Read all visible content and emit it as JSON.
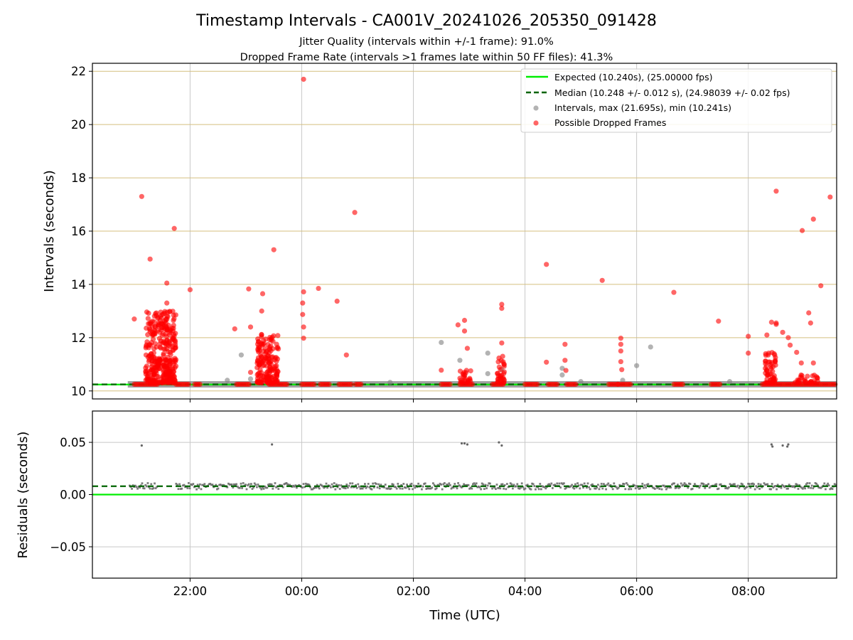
{
  "chart_data": [
    {
      "panel": "intervals",
      "type": "scatter",
      "title": "Timestamp Intervals - CA001V_20241026_205350_091428",
      "subtitle_lines": [
        "Jitter Quality (intervals within +/-1 frame): 91.0%",
        "Dropped Frame Rate (intervals >1 frames late within 50 FF files): 41.3%"
      ],
      "xlabel": "",
      "ylabel": "Intervals (seconds)",
      "x_ticks": [
        "22:00",
        "00:00",
        "02:00",
        "04:00",
        "06:00",
        "08:00"
      ],
      "x_tick_values": [
        "2024-10-26 22:00",
        "2024-10-27 00:00",
        "2024-10-27 02:00",
        "2024-10-27 04:00",
        "2024-10-27 06:00",
        "2024-10-27 08:00"
      ],
      "xlim": [
        "2024-10-26 20:15",
        "2024-10-27 09:35"
      ],
      "y_ticks": [
        "10",
        "12",
        "14",
        "16",
        "18",
        "20",
        "22"
      ],
      "ylim": [
        9.7,
        22.3
      ],
      "grid": true,
      "legend_position": "top-right",
      "series": [
        {
          "name": "Expected (10.240s), (25.00000 fps)",
          "kind": "hline",
          "y": 10.24,
          "color": "#00ee00",
          "style": "solid"
        },
        {
          "name": "Median (10.248 +/- 0.012 s), (24.98039 +/- 0.02 fps)",
          "kind": "hline",
          "y": 10.248,
          "color": "#006400",
          "style": "dashed"
        },
        {
          "name": "Intervals, max (21.695s), min (10.241s)",
          "kind": "scatter",
          "color": "#808080",
          "band": {
            "y": 10.248,
            "segments": [
              [
                "2024-10-26 20:53",
                "2024-10-27 09:35"
              ]
            ]
          },
          "points": [
            [
              "2024-10-26 22:55",
              11.35
            ],
            [
              "2024-10-26 22:40",
              10.4
            ],
            [
              "2024-10-26 23:05",
              10.45
            ],
            [
              "2024-10-27 02:30",
              11.82
            ],
            [
              "2024-10-27 02:50",
              11.15
            ],
            [
              "2024-10-27 02:55",
              10.6
            ],
            [
              "2024-10-27 03:20",
              11.42
            ],
            [
              "2024-10-27 03:20",
              10.65
            ],
            [
              "2024-10-27 03:35",
              10.8
            ],
            [
              "2024-10-27 04:40",
              10.85
            ],
            [
              "2024-10-27 04:40",
              10.6
            ],
            [
              "2024-10-27 05:00",
              10.35
            ],
            [
              "2024-10-27 06:00",
              10.95
            ],
            [
              "2024-10-27 06:15",
              11.65
            ],
            [
              "2024-10-27 07:40",
              10.35
            ],
            [
              "2024-10-27 01:35",
              10.32
            ],
            [
              "2024-10-27 05:45",
              10.4
            ]
          ]
        },
        {
          "name": "Possible Dropped Frames",
          "kind": "scatter",
          "color": "#ff0000",
          "baseline_clusters": [
            [
              "2024-10-26 21:00",
              "2024-10-26 21:25"
            ],
            [
              "2024-10-26 21:45",
              "2024-10-26 22:00"
            ],
            [
              "2024-10-26 22:05",
              "2024-10-26 22:12"
            ],
            [
              "2024-10-26 22:50",
              "2024-10-26 23:05"
            ],
            [
              "2024-10-26 23:25",
              "2024-10-26 23:45"
            ],
            [
              "2024-10-27 00:00",
              "2024-10-27 00:15"
            ],
            [
              "2024-10-27 00:20",
              "2024-10-27 00:30"
            ],
            [
              "2024-10-27 00:40",
              "2024-10-27 00:55"
            ],
            [
              "2024-10-27 00:58",
              "2024-10-27 01:05"
            ],
            [
              "2024-10-27 02:30",
              "2024-10-27 02:40"
            ],
            [
              "2024-10-27 02:50",
              "2024-10-27 03:05"
            ],
            [
              "2024-10-27 03:25",
              "2024-10-27 03:38"
            ],
            [
              "2024-10-27 04:00",
              "2024-10-27 04:15"
            ],
            [
              "2024-10-27 04:25",
              "2024-10-27 04:35"
            ],
            [
              "2024-10-27 04:45",
              "2024-10-27 04:55"
            ],
            [
              "2024-10-27 05:30",
              "2024-10-27 05:40"
            ],
            [
              "2024-10-27 05:40",
              "2024-10-27 05:55"
            ],
            [
              "2024-10-27 06:40",
              "2024-10-27 06:50"
            ],
            [
              "2024-10-27 07:20",
              "2024-10-27 07:30"
            ],
            [
              "2024-10-27 08:15",
              "2024-10-27 09:35"
            ]
          ],
          "points": [
            [
              "2024-10-26 21:00",
              12.7
            ],
            [
              "2024-10-26 21:08",
              17.3
            ],
            [
              "2024-10-26 21:17",
              14.95
            ],
            [
              "2024-10-26 21:43",
              16.1
            ],
            [
              "2024-10-26 21:35",
              14.05
            ],
            [
              "2024-10-26 21:35",
              13.3
            ],
            [
              "2024-10-26 21:38",
              12.97
            ],
            [
              "2024-10-26 22:00",
              13.8
            ],
            [
              "2024-10-26 22:48",
              12.33
            ],
            [
              "2024-10-26 23:03",
              13.83
            ],
            [
              "2024-10-26 23:05",
              12.4
            ],
            [
              "2024-10-26 23:18",
              13.65
            ],
            [
              "2024-10-26 23:17",
              13.0
            ],
            [
              "2024-10-26 23:30",
              15.3
            ],
            [
              "2024-10-26 23:05",
              10.7
            ],
            [
              "2024-10-27 00:02",
              21.7
            ],
            [
              "2024-10-27 00:02",
              13.72
            ],
            [
              "2024-10-27 00:01",
              13.3
            ],
            [
              "2024-10-27 00:01",
              12.87
            ],
            [
              "2024-10-27 00:02",
              12.4
            ],
            [
              "2024-10-27 00:02",
              11.98
            ],
            [
              "2024-10-27 00:18",
              13.85
            ],
            [
              "2024-10-27 00:38",
              13.37
            ],
            [
              "2024-10-27 00:48",
              11.35
            ],
            [
              "2024-10-27 00:57",
              16.7
            ],
            [
              "2024-10-27 02:48",
              12.48
            ],
            [
              "2024-10-27 02:55",
              12.65
            ],
            [
              "2024-10-27 02:55",
              12.25
            ],
            [
              "2024-10-27 02:58",
              11.6
            ],
            [
              "2024-10-27 02:30",
              10.78
            ],
            [
              "2024-10-27 03:35",
              13.25
            ],
            [
              "2024-10-27 03:35",
              13.1
            ],
            [
              "2024-10-27 03:35",
              11.8
            ],
            [
              "2024-10-27 03:36",
              11.3
            ],
            [
              "2024-10-27 04:23",
              14.75
            ],
            [
              "2024-10-27 04:23",
              11.08
            ],
            [
              "2024-10-27 04:43",
              11.75
            ],
            [
              "2024-10-27 04:43",
              11.15
            ],
            [
              "2024-10-27 04:44",
              10.77
            ],
            [
              "2024-10-27 05:23",
              14.15
            ],
            [
              "2024-10-27 05:43",
              11.98
            ],
            [
              "2024-10-27 05:43",
              11.75
            ],
            [
              "2024-10-27 05:43",
              11.5
            ],
            [
              "2024-10-27 05:43",
              11.1
            ],
            [
              "2024-10-27 05:44",
              10.8
            ],
            [
              "2024-10-27 06:40",
              13.7
            ],
            [
              "2024-10-27 07:28",
              12.62
            ],
            [
              "2024-10-27 08:00",
              12.05
            ],
            [
              "2024-10-27 08:00",
              11.42
            ],
            [
              "2024-10-27 08:20",
              12.1
            ],
            [
              "2024-10-27 08:22",
              11.42
            ],
            [
              "2024-10-27 08:25",
              12.58
            ],
            [
              "2024-10-27 08:30",
              12.55
            ],
            [
              "2024-10-27 08:30",
              12.5
            ],
            [
              "2024-10-27 08:37",
              12.2
            ],
            [
              "2024-10-27 08:43",
              12.0
            ],
            [
              "2024-10-27 08:45",
              11.72
            ],
            [
              "2024-10-27 08:52",
              11.45
            ],
            [
              "2024-10-27 08:57",
              11.05
            ],
            [
              "2024-10-27 09:10",
              11.05
            ],
            [
              "2024-10-27 09:05",
              12.93
            ],
            [
              "2024-10-27 09:07",
              12.55
            ],
            [
              "2024-10-27 08:30",
              17.5
            ],
            [
              "2024-10-27 08:58",
              16.02
            ],
            [
              "2024-10-27 09:10",
              16.45
            ],
            [
              "2024-10-27 09:18",
              13.95
            ],
            [
              "2024-10-27 09:28",
              17.28
            ]
          ],
          "dense_bursts": [
            {
              "start": "2024-10-26 21:12",
              "end": "2024-10-26 21:45",
              "ymin": 10.3,
              "ymax": 13.0
            },
            {
              "start": "2024-10-26 23:12",
              "end": "2024-10-26 23:35",
              "ymin": 10.3,
              "ymax": 12.2
            },
            {
              "start": "2024-10-27 02:50",
              "end": "2024-10-27 03:02",
              "ymin": 10.3,
              "ymax": 10.8
            },
            {
              "start": "2024-10-27 03:30",
              "end": "2024-10-27 03:38",
              "ymin": 10.3,
              "ymax": 11.3
            },
            {
              "start": "2024-10-27 08:18",
              "end": "2024-10-27 08:30",
              "ymin": 10.3,
              "ymax": 11.5
            },
            {
              "start": "2024-10-27 08:50",
              "end": "2024-10-27 09:15",
              "ymin": 10.3,
              "ymax": 10.6
            }
          ]
        }
      ]
    },
    {
      "panel": "residuals",
      "type": "scatter",
      "title": "",
      "xlabel": "Time (UTC)",
      "ylabel": "Residuals (seconds)",
      "x_ticks": [
        "22:00",
        "00:00",
        "02:00",
        "04:00",
        "06:00",
        "08:00"
      ],
      "y_ticks": [
        "−0.05",
        "0.00",
        "0.05"
      ],
      "y_tick_values": [
        -0.05,
        0.0,
        0.05
      ],
      "ylim": [
        -0.08,
        0.08
      ],
      "grid": true,
      "series": [
        {
          "kind": "hline",
          "y": 0.0,
          "color": "#00ee00",
          "style": "solid"
        },
        {
          "kind": "hline",
          "y": 0.008,
          "color": "#006400",
          "style": "dashed"
        },
        {
          "kind": "scatter",
          "color": "#666666",
          "band": {
            "y": 0.008,
            "spread": 0.003,
            "segments": [
              [
                "2024-10-26 20:55",
                "2024-10-26 21:25"
              ],
              [
                "2024-10-26 21:45",
                "2024-10-27 09:35"
              ]
            ]
          },
          "points": [
            [
              "2024-10-26 21:08",
              0.047
            ],
            [
              "2024-10-26 23:28",
              0.048
            ],
            [
              "2024-10-27 02:52",
              0.049
            ],
            [
              "2024-10-27 02:55",
              0.049
            ],
            [
              "2024-10-27 02:58",
              0.048
            ],
            [
              "2024-10-27 03:32",
              0.05
            ],
            [
              "2024-10-27 03:35",
              0.047
            ],
            [
              "2024-10-27 08:25",
              0.048
            ],
            [
              "2024-10-27 08:26",
              0.046
            ],
            [
              "2024-10-27 08:37",
              0.047
            ],
            [
              "2024-10-27 08:42",
              0.046
            ],
            [
              "2024-10-27 08:43",
              0.048
            ]
          ]
        }
      ]
    }
  ]
}
